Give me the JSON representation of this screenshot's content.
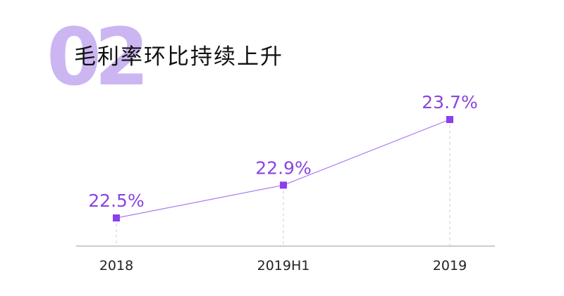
{
  "header": {
    "number": "02",
    "title": "毛利率环比持续上升"
  },
  "colors": {
    "accent": "#8b3ff0",
    "label": "#8b44e0",
    "number_bg": "#cbb6f2",
    "axis": "#999999"
  },
  "chart_data": {
    "type": "line",
    "title": "毛利率环比持续上升",
    "categories": [
      "2018",
      "2019H1",
      "2019"
    ],
    "values": [
      22.5,
      22.9,
      23.7
    ],
    "value_labels": [
      "22.5%",
      "22.9%",
      "23.7%"
    ],
    "unit": "%",
    "grid": false,
    "legend": "none"
  }
}
